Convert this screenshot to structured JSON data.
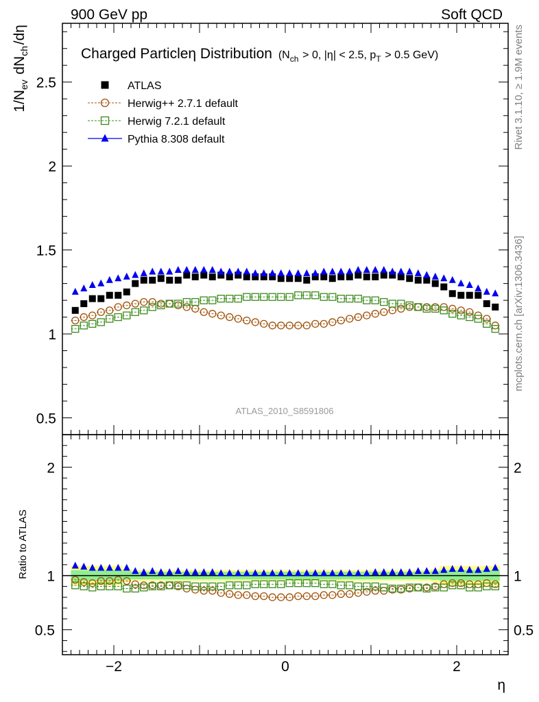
{
  "header": {
    "left": "900 GeV pp",
    "right": "Soft QCD"
  },
  "side_labels": {
    "right_top": "Rivet 3.1.10, ≥ 1.9M events",
    "right_bottom": "mcplots.cern.ch [arXiv:1306.3436]"
  },
  "chart_data": {
    "type": "scatter",
    "title_main": "Charged Particleη Distribution",
    "title_cond": "(N_ch > 0, |η| < 2.5, p_T > 0.5 GeV)",
    "watermark": "ATLAS_2010_S8591806",
    "xlabel": "η",
    "ylabel_main": "1/N_ev dN_ch/dη",
    "ylabel_ratio": "Ratio to ATLAS",
    "xlim": [
      -2.6,
      2.6
    ],
    "ylim_main": [
      0.4,
      2.85
    ],
    "ylim_ratio": [
      0.27,
      2.3
    ],
    "xticks": [
      "−2",
      "0",
      "2"
    ],
    "yticks_main": [
      "0.5",
      "1",
      "1.5",
      "2",
      "2.5"
    ],
    "yticks_ratio": [
      "0.5",
      "1",
      "2"
    ],
    "legend_position": "top-left",
    "x": [
      -2.45,
      -2.35,
      -2.25,
      -2.15,
      -2.05,
      -1.95,
      -1.85,
      -1.75,
      -1.65,
      -1.55,
      -1.45,
      -1.35,
      -1.25,
      -1.15,
      -1.05,
      -0.95,
      -0.85,
      -0.75,
      -0.65,
      -0.55,
      -0.45,
      -0.35,
      -0.25,
      -0.15,
      -0.05,
      0.05,
      0.15,
      0.25,
      0.35,
      0.45,
      0.55,
      0.65,
      0.75,
      0.85,
      0.95,
      1.05,
      1.15,
      1.25,
      1.35,
      1.45,
      1.55,
      1.65,
      1.75,
      1.85,
      1.95,
      2.05,
      2.15,
      2.25,
      2.35,
      2.45
    ],
    "series": [
      {
        "name": "ATLAS",
        "color": "#000000",
        "marker": "square-filled",
        "values": [
          1.14,
          1.18,
          1.21,
          1.21,
          1.23,
          1.23,
          1.25,
          1.3,
          1.32,
          1.32,
          1.33,
          1.32,
          1.32,
          1.35,
          1.34,
          1.35,
          1.34,
          1.35,
          1.34,
          1.35,
          1.34,
          1.34,
          1.34,
          1.34,
          1.33,
          1.33,
          1.33,
          1.32,
          1.34,
          1.34,
          1.33,
          1.34,
          1.34,
          1.35,
          1.34,
          1.34,
          1.35,
          1.35,
          1.34,
          1.33,
          1.32,
          1.32,
          1.3,
          1.28,
          1.24,
          1.23,
          1.23,
          1.23,
          1.18,
          1.16
        ]
      },
      {
        "name": "Herwig++ 2.7.1 default",
        "color": "#a0520a",
        "marker": "circle-open",
        "dashed": true,
        "values": [
          1.08,
          1.1,
          1.11,
          1.13,
          1.14,
          1.16,
          1.17,
          1.18,
          1.19,
          1.19,
          1.18,
          1.18,
          1.17,
          1.16,
          1.15,
          1.13,
          1.12,
          1.11,
          1.1,
          1.09,
          1.08,
          1.07,
          1.06,
          1.05,
          1.05,
          1.05,
          1.05,
          1.05,
          1.06,
          1.06,
          1.07,
          1.08,
          1.09,
          1.1,
          1.11,
          1.12,
          1.13,
          1.14,
          1.15,
          1.16,
          1.16,
          1.16,
          1.16,
          1.16,
          1.15,
          1.14,
          1.13,
          1.11,
          1.09,
          1.05
        ]
      },
      {
        "name": "Herwig 7.2.1 default",
        "color": "#3a8a1a",
        "marker": "square-open",
        "dashed": true,
        "values": [
          1.03,
          1.05,
          1.06,
          1.07,
          1.09,
          1.1,
          1.11,
          1.13,
          1.14,
          1.16,
          1.17,
          1.18,
          1.18,
          1.19,
          1.19,
          1.2,
          1.2,
          1.21,
          1.21,
          1.21,
          1.22,
          1.22,
          1.22,
          1.22,
          1.22,
          1.22,
          1.23,
          1.23,
          1.23,
          1.22,
          1.22,
          1.21,
          1.21,
          1.21,
          1.2,
          1.2,
          1.19,
          1.18,
          1.18,
          1.17,
          1.16,
          1.15,
          1.15,
          1.14,
          1.12,
          1.11,
          1.1,
          1.09,
          1.06,
          1.03
        ]
      },
      {
        "name": "Pythia 8.308 default",
        "color": "#0000ee",
        "marker": "triangle-filled",
        "values": [
          1.25,
          1.27,
          1.29,
          1.3,
          1.32,
          1.33,
          1.34,
          1.35,
          1.36,
          1.37,
          1.37,
          1.37,
          1.38,
          1.38,
          1.38,
          1.38,
          1.38,
          1.37,
          1.37,
          1.37,
          1.37,
          1.36,
          1.36,
          1.36,
          1.36,
          1.36,
          1.36,
          1.36,
          1.36,
          1.37,
          1.37,
          1.37,
          1.37,
          1.38,
          1.38,
          1.38,
          1.38,
          1.37,
          1.37,
          1.37,
          1.36,
          1.35,
          1.34,
          1.33,
          1.32,
          1.3,
          1.29,
          1.27,
          1.25,
          1.24
        ]
      }
    ],
    "ratio_series": [
      {
        "name": "Herwig++ 2.7.1 default",
        "values": [
          0.96,
          0.94,
          0.93,
          0.95,
          0.95,
          0.96,
          0.95,
          0.92,
          0.91,
          0.91,
          0.91,
          0.91,
          0.9,
          0.88,
          0.87,
          0.86,
          0.86,
          0.84,
          0.83,
          0.82,
          0.82,
          0.81,
          0.81,
          0.8,
          0.8,
          0.8,
          0.81,
          0.81,
          0.81,
          0.82,
          0.82,
          0.83,
          0.83,
          0.84,
          0.85,
          0.86,
          0.86,
          0.87,
          0.87,
          0.88,
          0.89,
          0.89,
          0.9,
          0.92,
          0.93,
          0.93,
          0.92,
          0.92,
          0.93,
          0.92
        ]
      },
      {
        "name": "Herwig 7.2.1 default",
        "values": [
          0.91,
          0.9,
          0.89,
          0.9,
          0.9,
          0.9,
          0.88,
          0.88,
          0.89,
          0.9,
          0.9,
          0.91,
          0.91,
          0.91,
          0.9,
          0.9,
          0.9,
          0.9,
          0.91,
          0.91,
          0.91,
          0.92,
          0.92,
          0.92,
          0.92,
          0.93,
          0.93,
          0.93,
          0.93,
          0.92,
          0.92,
          0.91,
          0.91,
          0.9,
          0.9,
          0.9,
          0.89,
          0.88,
          0.88,
          0.89,
          0.89,
          0.88,
          0.89,
          0.89,
          0.91,
          0.91,
          0.89,
          0.89,
          0.9,
          0.9
        ]
      },
      {
        "name": "Pythia 8.308 default",
        "values": [
          1.09,
          1.08,
          1.07,
          1.07,
          1.07,
          1.07,
          1.07,
          1.04,
          1.03,
          1.04,
          1.03,
          1.03,
          1.04,
          1.03,
          1.03,
          1.03,
          1.03,
          1.02,
          1.02,
          1.02,
          1.02,
          1.02,
          1.02,
          1.02,
          1.02,
          1.02,
          1.02,
          1.02,
          1.02,
          1.02,
          1.02,
          1.02,
          1.02,
          1.02,
          1.02,
          1.03,
          1.03,
          1.03,
          1.03,
          1.03,
          1.04,
          1.04,
          1.04,
          1.05,
          1.06,
          1.06,
          1.05,
          1.05,
          1.06,
          1.07
        ]
      }
    ],
    "ratio_bands": {
      "inner_color": "#90ee90",
      "outer_color": "#ffff88",
      "inner": [
        0.05,
        0.05,
        0.05,
        0.05,
        0.05,
        0.05,
        0.04,
        0.035,
        0.035,
        0.035,
        0.035,
        0.035,
        0.035,
        0.035,
        0.035,
        0.035,
        0.035,
        0.035,
        0.035,
        0.035,
        0.035,
        0.035,
        0.035,
        0.035,
        0.035,
        0.035,
        0.035,
        0.035,
        0.035,
        0.035,
        0.035,
        0.035,
        0.035,
        0.035,
        0.035,
        0.035,
        0.035,
        0.035,
        0.035,
        0.035,
        0.035,
        0.035,
        0.04,
        0.05,
        0.05,
        0.05,
        0.05,
        0.05,
        0.05,
        0.05
      ],
      "outer": [
        0.09,
        0.09,
        0.09,
        0.09,
        0.09,
        0.09,
        0.06,
        0.05,
        0.05,
        0.05,
        0.05,
        0.05,
        0.05,
        0.05,
        0.05,
        0.05,
        0.05,
        0.05,
        0.05,
        0.05,
        0.05,
        0.05,
        0.05,
        0.05,
        0.05,
        0.05,
        0.05,
        0.05,
        0.05,
        0.05,
        0.05,
        0.05,
        0.05,
        0.05,
        0.05,
        0.05,
        0.05,
        0.05,
        0.05,
        0.05,
        0.05,
        0.05,
        0.06,
        0.09,
        0.09,
        0.09,
        0.09,
        0.09,
        0.09,
        0.09
      ]
    }
  }
}
